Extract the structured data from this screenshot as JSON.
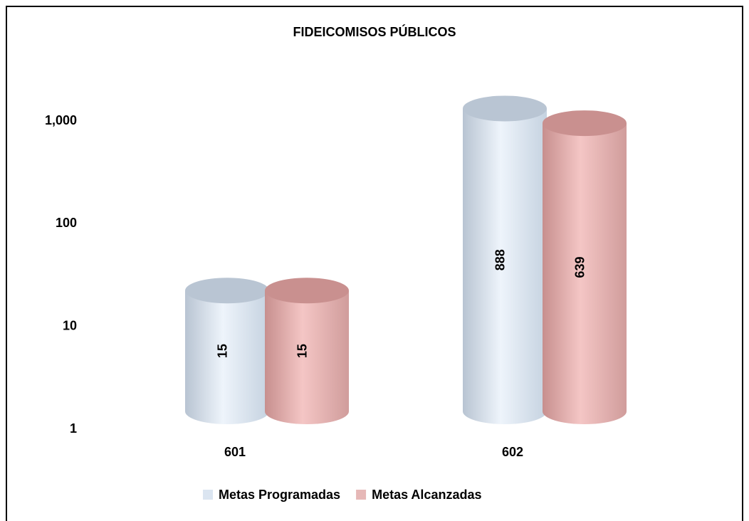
{
  "chart_data": {
    "type": "bar",
    "title": "FIDEICOMISOS PÚBLICOS",
    "categories": [
      "601",
      "602"
    ],
    "series": [
      {
        "name": "Metas Programadas",
        "color": "#dbe5f1",
        "values": [
          15,
          888
        ]
      },
      {
        "name": "Metas Alcanzadas",
        "color": "#e6b8b7",
        "values": [
          15,
          639
        ]
      }
    ],
    "log_scale": true,
    "ylim": [
      1,
      1000
    ],
    "yticks": [
      1,
      10,
      100,
      {
        "value": 1000,
        "label": "1,000"
      }
    ],
    "grid": false,
    "legend": "bottom"
  }
}
